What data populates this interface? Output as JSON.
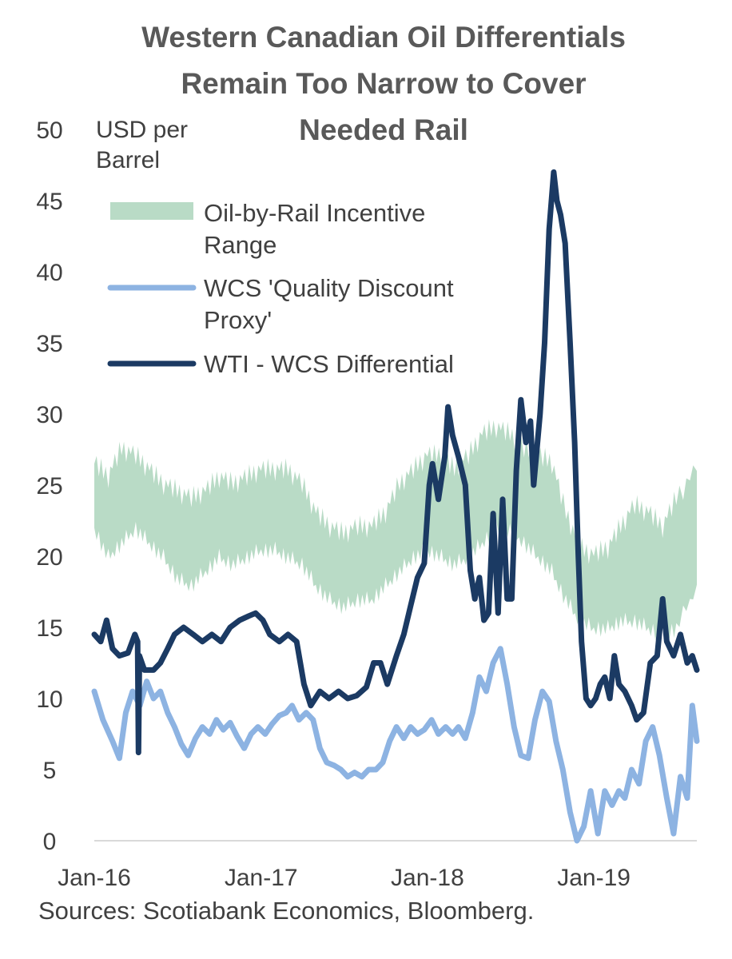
{
  "title": [
    "Western Canadian Oil Differentials",
    "Remain Too Narrow to Cover",
    "Needed Rail"
  ],
  "source": "Sources: Scotiabank Economics, Bloomberg.",
  "colors": {
    "band": "#b9dbc6",
    "quality": "#8db3e2",
    "differential": "#1b3a63",
    "axis": "#d9d9d9",
    "text": "#404040",
    "title": "#595959"
  },
  "chart_data": {
    "type": "line",
    "ylabel": [
      "USD per",
      "Barrel"
    ],
    "ylim": [
      0,
      50
    ],
    "yticks": [
      0,
      5,
      10,
      15,
      20,
      25,
      30,
      35,
      40,
      45,
      50
    ],
    "xlim": [
      "2016-01-01",
      "2019-08-15"
    ],
    "xticks": [
      {
        "date": "2016-01-01",
        "label": "Jan-16"
      },
      {
        "date": "2017-01-01",
        "label": "Jan-17"
      },
      {
        "date": "2018-01-01",
        "label": "Jan-18"
      },
      {
        "date": "2019-01-01",
        "label": "Jan-19"
      }
    ],
    "legend": {
      "placement": "top-left",
      "items": [
        {
          "key": "band",
          "label": [
            "Oil-by-Rail Incentive",
            "Range"
          ]
        },
        {
          "key": "quality",
          "label": [
            "WCS 'Quality Discount",
            "Proxy'"
          ]
        },
        {
          "key": "differential",
          "label": [
            "WTI - WCS Differential"
          ]
        }
      ]
    },
    "series": [
      {
        "name": "Oil-by-Rail Incentive Range",
        "type": "area-range",
        "points": [
          [
            "2016-01-01",
            22,
            26.5
          ],
          [
            "2016-02-01",
            20,
            25.5
          ],
          [
            "2016-03-01",
            21,
            27.5
          ],
          [
            "2016-04-01",
            22,
            27
          ],
          [
            "2016-05-01",
            21,
            26
          ],
          [
            "2016-06-01",
            20,
            25
          ],
          [
            "2016-07-01",
            18.5,
            24.5
          ],
          [
            "2016-08-01",
            18,
            24
          ],
          [
            "2016-09-01",
            19,
            24.5
          ],
          [
            "2016-10-01",
            20,
            25.5
          ],
          [
            "2016-11-01",
            19.5,
            25
          ],
          [
            "2016-12-01",
            20,
            25.5
          ],
          [
            "2017-01-01",
            20.5,
            26
          ],
          [
            "2017-02-01",
            20.5,
            26
          ],
          [
            "2017-03-01",
            20,
            26
          ],
          [
            "2017-04-01",
            19.5,
            25
          ],
          [
            "2017-05-01",
            18,
            23
          ],
          [
            "2017-06-01",
            17,
            22
          ],
          [
            "2017-07-01",
            16.5,
            21.5
          ],
          [
            "2017-08-01",
            17,
            22
          ],
          [
            "2017-09-01",
            17,
            22
          ],
          [
            "2017-10-01",
            18,
            23
          ],
          [
            "2017-11-01",
            19,
            25
          ],
          [
            "2017-12-01",
            20,
            26
          ],
          [
            "2018-01-01",
            20.5,
            27
          ],
          [
            "2018-02-01",
            20,
            27
          ],
          [
            "2018-03-01",
            19.5,
            26
          ],
          [
            "2018-04-01",
            20,
            27
          ],
          [
            "2018-05-01",
            21,
            28.5
          ],
          [
            "2018-06-01",
            22,
            29
          ],
          [
            "2018-07-01",
            22,
            28.5
          ],
          [
            "2018-08-01",
            21,
            27.5
          ],
          [
            "2018-09-01",
            20,
            27
          ],
          [
            "2018-10-01",
            19,
            26.5
          ],
          [
            "2018-11-01",
            17,
            23
          ],
          [
            "2018-12-01",
            15.5,
            20.5
          ],
          [
            "2019-01-01",
            15,
            20
          ],
          [
            "2019-02-01",
            15,
            20.5
          ],
          [
            "2019-03-01",
            15.5,
            22
          ],
          [
            "2019-04-01",
            15.5,
            23.5
          ],
          [
            "2019-05-01",
            15,
            23
          ],
          [
            "2019-06-01",
            14.5,
            22
          ],
          [
            "2019-07-01",
            15,
            24
          ],
          [
            "2019-08-15",
            18,
            26
          ]
        ]
      },
      {
        "name": "WCS 'Quality Discount Proxy'",
        "points": [
          [
            "2016-01-01",
            10.5
          ],
          [
            "2016-01-20",
            8.5
          ],
          [
            "2016-02-10",
            7
          ],
          [
            "2016-02-25",
            5.8
          ],
          [
            "2016-03-10",
            9
          ],
          [
            "2016-03-25",
            10.5
          ],
          [
            "2016-04-10",
            9.5
          ],
          [
            "2016-04-25",
            11.2
          ],
          [
            "2016-05-10",
            10
          ],
          [
            "2016-05-25",
            10.5
          ],
          [
            "2016-06-10",
            9
          ],
          [
            "2016-06-25",
            8
          ],
          [
            "2016-07-10",
            6.8
          ],
          [
            "2016-07-25",
            6
          ],
          [
            "2016-08-10",
            7.2
          ],
          [
            "2016-08-25",
            8
          ],
          [
            "2016-09-10",
            7.5
          ],
          [
            "2016-09-25",
            8.5
          ],
          [
            "2016-10-10",
            7.8
          ],
          [
            "2016-10-25",
            8.3
          ],
          [
            "2016-11-10",
            7.3
          ],
          [
            "2016-11-25",
            6.5
          ],
          [
            "2016-12-10",
            7.5
          ],
          [
            "2016-12-25",
            8
          ],
          [
            "2017-01-10",
            7.5
          ],
          [
            "2017-01-25",
            8.2
          ],
          [
            "2017-02-10",
            8.8
          ],
          [
            "2017-02-25",
            9
          ],
          [
            "2017-03-10",
            9.5
          ],
          [
            "2017-03-25",
            8.5
          ],
          [
            "2017-04-10",
            9
          ],
          [
            "2017-04-25",
            8.5
          ],
          [
            "2017-05-10",
            6.5
          ],
          [
            "2017-05-25",
            5.5
          ],
          [
            "2017-06-10",
            5.3
          ],
          [
            "2017-06-25",
            5
          ],
          [
            "2017-07-10",
            4.5
          ],
          [
            "2017-07-25",
            4.8
          ],
          [
            "2017-08-10",
            4.5
          ],
          [
            "2017-08-25",
            5
          ],
          [
            "2017-09-10",
            5
          ],
          [
            "2017-09-25",
            5.5
          ],
          [
            "2017-10-10",
            7
          ],
          [
            "2017-10-25",
            8
          ],
          [
            "2017-11-10",
            7.2
          ],
          [
            "2017-11-25",
            8
          ],
          [
            "2017-12-10",
            7.5
          ],
          [
            "2017-12-25",
            7.8
          ],
          [
            "2018-01-10",
            8.5
          ],
          [
            "2018-01-25",
            7.5
          ],
          [
            "2018-02-10",
            8
          ],
          [
            "2018-02-25",
            7.5
          ],
          [
            "2018-03-10",
            8
          ],
          [
            "2018-03-25",
            7.2
          ],
          [
            "2018-04-10",
            9
          ],
          [
            "2018-04-25",
            11.5
          ],
          [
            "2018-05-10",
            10.5
          ],
          [
            "2018-05-25",
            12.5
          ],
          [
            "2018-06-10",
            13.5
          ],
          [
            "2018-06-25",
            11
          ],
          [
            "2018-07-10",
            8
          ],
          [
            "2018-07-25",
            6
          ],
          [
            "2018-08-10",
            5.8
          ],
          [
            "2018-08-25",
            8.5
          ],
          [
            "2018-09-10",
            10.5
          ],
          [
            "2018-09-25",
            9.8
          ],
          [
            "2018-10-10",
            7
          ],
          [
            "2018-10-25",
            5
          ],
          [
            "2018-11-10",
            2
          ],
          [
            "2018-11-25",
            0
          ],
          [
            "2018-12-10",
            1
          ],
          [
            "2018-12-25",
            3.5
          ],
          [
            "2019-01-10",
            0.5
          ],
          [
            "2019-01-25",
            3.5
          ],
          [
            "2019-02-10",
            2.5
          ],
          [
            "2019-02-25",
            3.5
          ],
          [
            "2019-03-10",
            3
          ],
          [
            "2019-03-25",
            5
          ],
          [
            "2019-04-10",
            4
          ],
          [
            "2019-04-25",
            7
          ],
          [
            "2019-05-10",
            8
          ],
          [
            "2019-05-25",
            6
          ],
          [
            "2019-06-10",
            3
          ],
          [
            "2019-06-25",
            0.5
          ],
          [
            "2019-07-10",
            4.5
          ],
          [
            "2019-07-25",
            3
          ],
          [
            "2019-08-05",
            9.5
          ],
          [
            "2019-08-15",
            7
          ]
        ]
      },
      {
        "name": "WTI - WCS Differential",
        "points": [
          [
            "2016-01-01",
            14.5
          ],
          [
            "2016-01-15",
            14
          ],
          [
            "2016-01-28",
            15.5
          ],
          [
            "2016-02-10",
            13.5
          ],
          [
            "2016-02-25",
            13
          ],
          [
            "2016-03-15",
            13.2
          ],
          [
            "2016-03-30",
            14.5
          ],
          [
            "2016-04-05",
            14
          ],
          [
            "2016-04-07",
            6.2
          ],
          [
            "2016-04-09",
            13
          ],
          [
            "2016-04-20",
            12
          ],
          [
            "2016-05-10",
            12
          ],
          [
            "2016-05-25",
            12.5
          ],
          [
            "2016-06-10",
            13.5
          ],
          [
            "2016-06-25",
            14.5
          ],
          [
            "2016-07-15",
            15
          ],
          [
            "2016-08-05",
            14.5
          ],
          [
            "2016-08-25",
            14
          ],
          [
            "2016-09-15",
            14.5
          ],
          [
            "2016-10-05",
            14
          ],
          [
            "2016-10-25",
            15
          ],
          [
            "2016-11-15",
            15.5
          ],
          [
            "2016-12-05",
            15.8
          ],
          [
            "2016-12-20",
            16
          ],
          [
            "2017-01-05",
            15.5
          ],
          [
            "2017-01-20",
            14.5
          ],
          [
            "2017-02-10",
            14
          ],
          [
            "2017-03-01",
            14.5
          ],
          [
            "2017-03-20",
            14
          ],
          [
            "2017-04-05",
            11
          ],
          [
            "2017-04-20",
            9.5
          ],
          [
            "2017-05-10",
            10.5
          ],
          [
            "2017-05-30",
            10
          ],
          [
            "2017-06-20",
            10.5
          ],
          [
            "2017-07-10",
            10
          ],
          [
            "2017-07-30",
            10.2
          ],
          [
            "2017-08-20",
            10.8
          ],
          [
            "2017-09-05",
            12.5
          ],
          [
            "2017-09-20",
            12.5
          ],
          [
            "2017-10-05",
            11
          ],
          [
            "2017-10-25",
            13
          ],
          [
            "2017-11-10",
            14.5
          ],
          [
            "2017-11-25",
            16.5
          ],
          [
            "2017-12-10",
            18.5
          ],
          [
            "2017-12-25",
            19.5
          ],
          [
            "2018-01-05",
            25
          ],
          [
            "2018-01-12",
            26.5
          ],
          [
            "2018-01-25",
            24
          ],
          [
            "2018-02-08",
            27
          ],
          [
            "2018-02-15",
            30.5
          ],
          [
            "2018-02-25",
            28.5
          ],
          [
            "2018-03-10",
            27
          ],
          [
            "2018-03-25",
            25
          ],
          [
            "2018-04-05",
            19
          ],
          [
            "2018-04-15",
            17
          ],
          [
            "2018-04-25",
            18.5
          ],
          [
            "2018-05-05",
            15.5
          ],
          [
            "2018-05-15",
            16
          ],
          [
            "2018-05-25",
            23
          ],
          [
            "2018-06-05",
            16
          ],
          [
            "2018-06-15",
            24
          ],
          [
            "2018-06-25",
            17
          ],
          [
            "2018-07-05",
            17
          ],
          [
            "2018-07-15",
            26
          ],
          [
            "2018-07-25",
            31
          ],
          [
            "2018-08-05",
            28
          ],
          [
            "2018-08-15",
            29.5
          ],
          [
            "2018-08-22",
            25
          ],
          [
            "2018-09-05",
            30
          ],
          [
            "2018-09-15",
            35
          ],
          [
            "2018-09-25",
            43
          ],
          [
            "2018-10-05",
            47
          ],
          [
            "2018-10-12",
            45
          ],
          [
            "2018-10-20",
            44
          ],
          [
            "2018-10-30",
            42
          ],
          [
            "2018-11-10",
            35
          ],
          [
            "2018-11-20",
            28
          ],
          [
            "2018-11-28",
            20
          ],
          [
            "2018-12-05",
            14
          ],
          [
            "2018-12-15",
            10
          ],
          [
            "2018-12-25",
            9.5
          ],
          [
            "2019-01-05",
            10
          ],
          [
            "2019-01-15",
            11
          ],
          [
            "2019-01-25",
            11.5
          ],
          [
            "2019-02-05",
            10
          ],
          [
            "2019-02-15",
            13
          ],
          [
            "2019-02-25",
            11
          ],
          [
            "2019-03-10",
            10.5
          ],
          [
            "2019-03-25",
            9.5
          ],
          [
            "2019-04-05",
            8.5
          ],
          [
            "2019-04-20",
            9
          ],
          [
            "2019-05-05",
            12.5
          ],
          [
            "2019-05-20",
            13
          ],
          [
            "2019-06-01",
            17
          ],
          [
            "2019-06-10",
            14
          ],
          [
            "2019-06-25",
            13
          ],
          [
            "2019-07-10",
            14.5
          ],
          [
            "2019-07-25",
            12.5
          ],
          [
            "2019-08-05",
            13
          ],
          [
            "2019-08-15",
            12
          ]
        ]
      }
    ]
  }
}
